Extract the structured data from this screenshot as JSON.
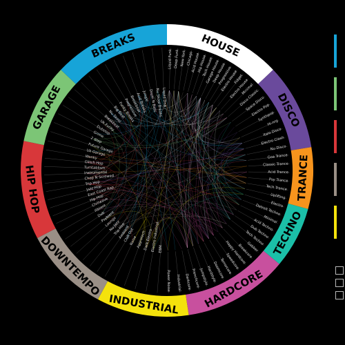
{
  "genres": [
    {
      "name": "HOUSE",
      "color": "#ffffff",
      "text": "#000000",
      "subs": [
        "Liquid Funk",
        "Deep Funk",
        "New York",
        "Chicago",
        "Acid House",
        "Hip House",
        "Tech House",
        "Garage House",
        "Deep House",
        "Progressive",
        "Electro House",
        "Fidget",
        "Electro House",
        "Minimal"
      ]
    },
    {
      "name": "DISCO",
      "color": "#6a4a9c",
      "text": "#000000",
      "subs": [
        "Disco Classic",
        "Space Disco",
        "Electro Pop",
        "Synthpop",
        "Hi-nrg",
        "Italo Disco",
        "Electro Clash",
        "Nu Disco"
      ]
    },
    {
      "name": "TRANCE",
      "color": "#f7941d",
      "text": "#000000",
      "subs": [
        "Goa Trance",
        "Classic Trance",
        "Acid Trance",
        "Psy Trance",
        "Tech Trance",
        "Uplifting"
      ]
    },
    {
      "name": "TECHNO",
      "color": "#1bbfa8",
      "text": "#000000",
      "subs": [
        "Electro",
        "Detroit Techno",
        "Minimal",
        "Acid Techno",
        "Dub Techno",
        "Tech Techno"
      ]
    },
    {
      "name": "HARDCORE",
      "color": "#c8509e",
      "text": "#000000",
      "subs": [
        "Gabber",
        "Breakcore",
        "Happy Hardcore",
        "Speedcore",
        "Terrorcore",
        "Doomcore",
        "Hardstyle",
        "Jumpstyle",
        "Frenchcore",
        "Darkcore"
      ]
    },
    {
      "name": "INDUSTRIAL",
      "color": "#f4e20c",
      "text": "#000000",
      "subs": [
        "Industrial",
        "Power Noise",
        "EBM",
        "Electro Industrial",
        "Dark Electro",
        "Aggrotech",
        "Noise"
      ]
    },
    {
      "name": "DOWNTEMPO",
      "color": "#9a8f86",
      "text": "#000000",
      "subs": [
        "Chill Out",
        "Ambient",
        "Trip Hop",
        "Nu Jazz",
        "Lounge",
        "Psybient",
        "Dub",
        "Illbient"
      ]
    },
    {
      "name": "HIP HOP",
      "color": "#d8373a",
      "text": "#000000",
      "subs": [
        "Chillwave",
        "Hip Hop",
        "East Coast Rap",
        "Jazz Hop",
        "Trip Hop",
        "Chop N Screwed",
        "Instrumental",
        "Turntablism",
        "Glitch Hop",
        "Wonky"
      ]
    },
    {
      "name": "GARAGE",
      "color": "#7cc576",
      "text": "#000000",
      "subs": [
        "Uk Garage",
        "Future Garage",
        "2 Step",
        "Grime",
        "Dubstep",
        "Uk Funky",
        "Breakbeat"
      ]
    },
    {
      "name": "BREAKS",
      "color": "#17a4d8",
      "text": "#000000",
      "subs": [
        "Nu Skool",
        "Big Beat",
        "Funky Breaks",
        "Progressive",
        "Breakbeat",
        "Acid Breaks",
        "Jungle",
        "Drum N Bass",
        "Nu Skool Breaks",
        "Liquid DnB"
      ]
    }
  ],
  "spans": [
    38,
    28,
    20,
    20,
    34,
    30,
    28,
    32,
    26,
    38
  ],
  "legend_colors": [
    "#17a4d8",
    "#7cc576",
    "#d8373a",
    "#9a8f86",
    "#f4e20c"
  ]
}
